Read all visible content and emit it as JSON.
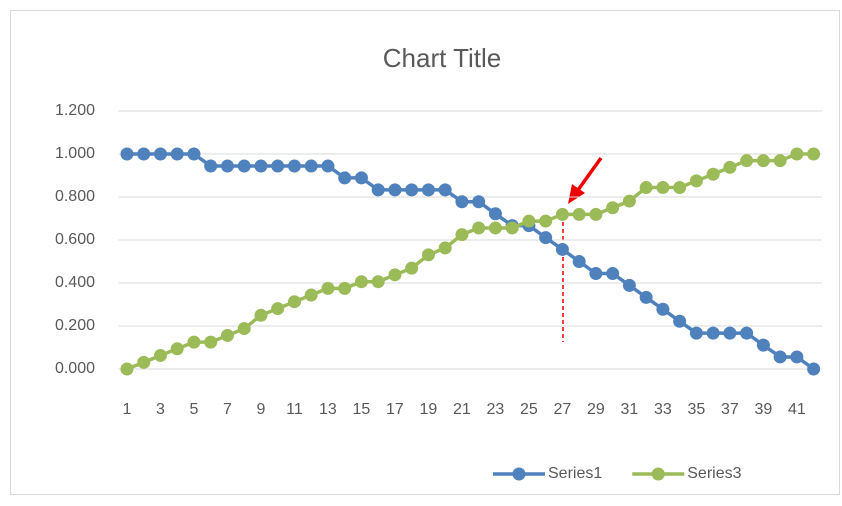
{
  "chart_data": {
    "type": "line",
    "title": "Chart Title",
    "categories": [
      "1",
      null,
      "3",
      null,
      "5",
      null,
      "7",
      null,
      "9",
      null,
      "11",
      null,
      "13",
      null,
      "15",
      null,
      "17",
      null,
      "19",
      null,
      "21",
      null,
      "23",
      null,
      "25",
      null,
      "27",
      null,
      "29",
      null,
      "31",
      null,
      "33",
      null,
      "35",
      null,
      "37",
      null,
      "39",
      null,
      "41",
      null
    ],
    "series": [
      {
        "name": "Series1",
        "color": "#4f81bd",
        "values": [
          1.0,
          1.0,
          1.0,
          1.0,
          1.0,
          0.944,
          0.944,
          0.944,
          0.944,
          0.944,
          0.944,
          0.944,
          0.944,
          0.889,
          0.889,
          0.833,
          0.833,
          0.833,
          0.833,
          0.833,
          0.778,
          0.778,
          0.722,
          0.667,
          0.667,
          0.611,
          0.556,
          0.5,
          0.444,
          0.444,
          0.389,
          0.333,
          0.278,
          0.222,
          0.167,
          0.167,
          0.167,
          0.167,
          0.111,
          0.056,
          0.056,
          0.0
        ]
      },
      {
        "name": "Series3",
        "color": "#9bbb59",
        "values": [
          0.0,
          0.031,
          0.063,
          0.094,
          0.125,
          0.125,
          0.156,
          0.188,
          0.25,
          0.281,
          0.313,
          0.344,
          0.375,
          0.375,
          0.406,
          0.406,
          0.438,
          0.469,
          0.531,
          0.563,
          0.625,
          0.656,
          0.656,
          0.656,
          0.688,
          0.688,
          0.719,
          0.719,
          0.719,
          0.75,
          0.781,
          0.844,
          0.844,
          0.844,
          0.875,
          0.906,
          0.938,
          0.969,
          0.969,
          0.969,
          1.0,
          1.0
        ]
      }
    ],
    "ylim": [
      0,
      1.2
    ],
    "yticks": [
      {
        "value": 0,
        "label": "0.000"
      },
      {
        "value": 0.2,
        "label": "0.200"
      },
      {
        "value": 0.4,
        "label": "0.400"
      },
      {
        "value": 0.6,
        "label": "0.600"
      },
      {
        "value": 0.8,
        "label": "0.800"
      },
      {
        "value": 1.0,
        "label": "1.000"
      },
      {
        "value": 1.2,
        "label": "1.200"
      }
    ],
    "grid": true,
    "legend": "bottom"
  }
}
